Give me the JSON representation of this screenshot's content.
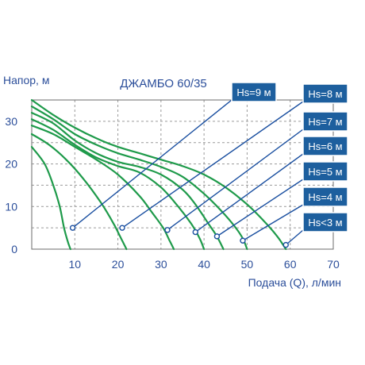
{
  "chart_data": {
    "type": "line",
    "title": "ДЖАМБО 60/35",
    "xlabel": "Подача (Q), л/мин",
    "ylabel": "Напор, м",
    "xlim": [
      0,
      70
    ],
    "ylim": [
      0,
      35
    ],
    "x_ticks": [
      "10",
      "20",
      "30",
      "40",
      "50",
      "60",
      "70"
    ],
    "y_ticks": [
      "0",
      "10",
      "20",
      "30"
    ],
    "grid": true,
    "colors": {
      "curve": "#1e9a4a",
      "annotation": "#1a4fa0",
      "label_box": "#1d5f9e",
      "label_text": "#ffffff",
      "axis_text": "#2b4e9a",
      "grid": "#9a9a9a"
    },
    "series": [
      {
        "name": "Hs=9 м",
        "x": [
          0,
          3,
          5,
          6.5,
          7.5,
          8.3,
          8.8,
          9
        ],
        "y": [
          24,
          20,
          15,
          10,
          5,
          2,
          0.5,
          0
        ]
      },
      {
        "name": "Hs=8 м",
        "x": [
          0,
          4,
          8,
          12,
          16,
          19,
          20.5,
          21.5,
          22
        ],
        "y": [
          27,
          24.5,
          21,
          16.5,
          11,
          6,
          3,
          1,
          0
        ]
      },
      {
        "name": "Hs=7 м",
        "x": [
          0,
          5,
          10,
          15,
          20,
          25,
          28,
          30.5,
          32,
          33
        ],
        "y": [
          29,
          27,
          24,
          21,
          17.5,
          12.5,
          8.5,
          5,
          2,
          0
        ]
      },
      {
        "name": "Hs=6 м",
        "x": [
          0,
          5,
          10,
          15,
          20,
          25,
          30,
          34,
          37,
          39,
          40
        ],
        "y": [
          30.5,
          28,
          24.5,
          21.5,
          19.5,
          18,
          14.5,
          10,
          6,
          2.5,
          0
        ]
      },
      {
        "name": "Hs=5 м",
        "x": [
          0,
          5,
          10,
          15,
          20,
          25,
          30,
          35,
          38,
          41,
          43,
          44.5
        ],
        "y": [
          32,
          29.5,
          25.5,
          22.5,
          20.5,
          19.3,
          17.5,
          14,
          10.5,
          6,
          3,
          0
        ]
      },
      {
        "name": "Hs=4 м",
        "x": [
          0,
          5,
          10,
          15,
          20,
          25,
          30,
          35,
          40,
          44,
          47,
          49,
          50
        ],
        "y": [
          33.5,
          30.5,
          27,
          24.5,
          22.5,
          21,
          19.3,
          17,
          13,
          9,
          5.5,
          2.5,
          0
        ]
      },
      {
        "name": "Hs<3 м",
        "x": [
          0,
          5,
          10,
          15,
          20,
          25,
          30,
          35,
          40,
          45,
          50,
          54,
          57,
          59
        ],
        "y": [
          35,
          31.5,
          28.5,
          26,
          24,
          22.5,
          21,
          19.5,
          17.5,
          14.5,
          10.5,
          6.5,
          3,
          0
        ]
      }
    ],
    "markers": [
      {
        "series": "Hs=9 м",
        "x": 9.5,
        "y": 5
      },
      {
        "series": "Hs=8 м",
        "x": 21,
        "y": 5
      },
      {
        "series": "Hs=7 м",
        "x": 31.5,
        "y": 4.5
      },
      {
        "series": "Hs=6 м",
        "x": 38,
        "y": 4
      },
      {
        "series": "Hs=5 м",
        "x": 43,
        "y": 3
      },
      {
        "series": "Hs=4 м",
        "x": 49,
        "y": 2
      },
      {
        "series": "Hs<3 м",
        "x": 59,
        "y": 1
      }
    ]
  }
}
